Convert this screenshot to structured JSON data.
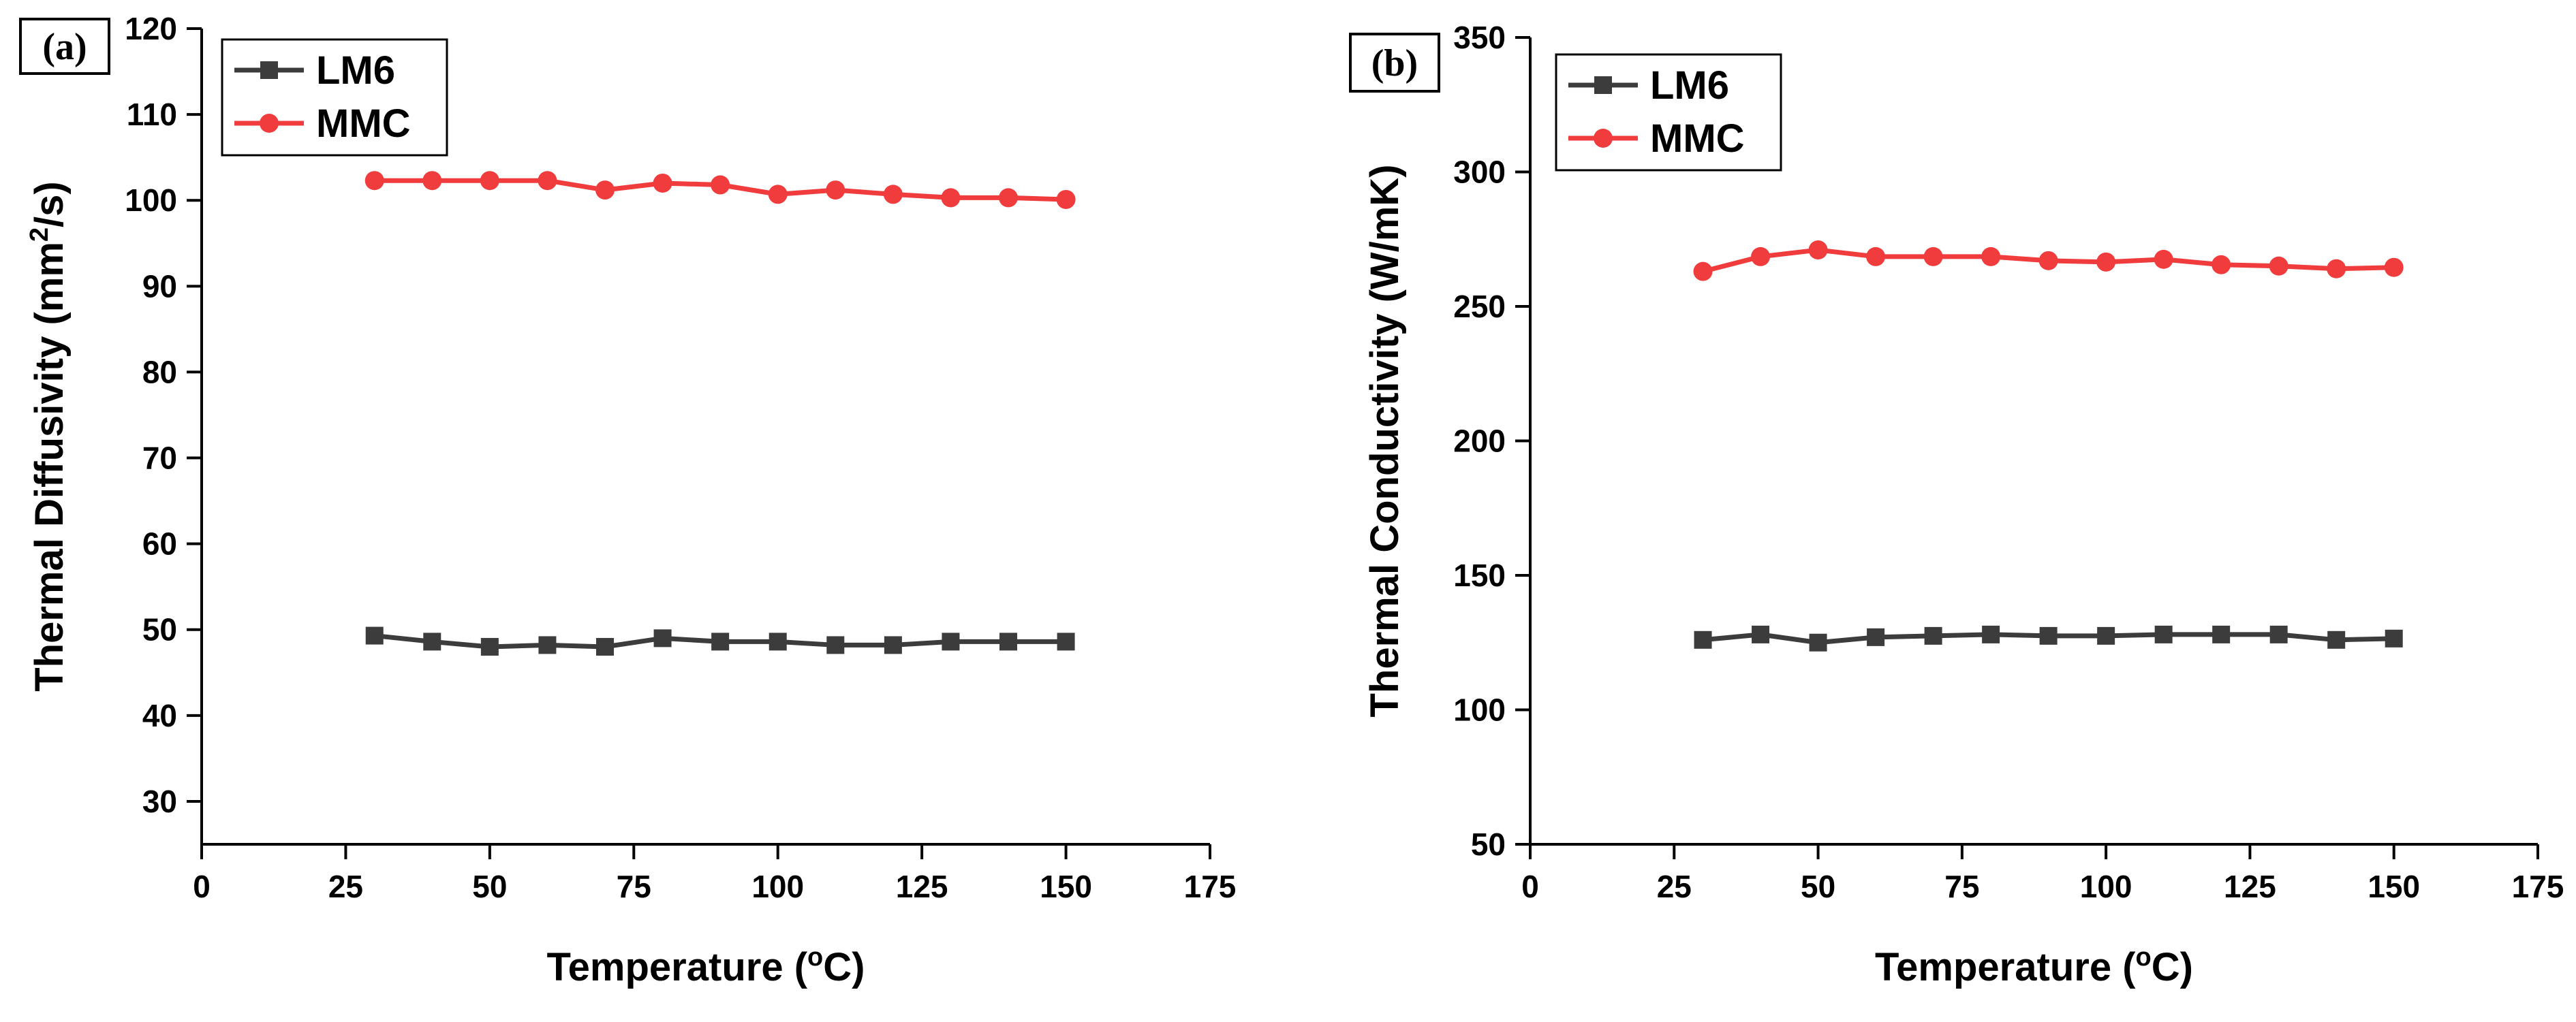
{
  "chart_data": [
    {
      "type": "line",
      "panel_label": "(a)",
      "title": "",
      "xlabel": "Temperature (",
      "xlabel_sup": "o",
      "xlabel_suffix": "C)",
      "ylabel": "Thermal Diffusivity (mm",
      "ylabel_sup": "2",
      "ylabel_suffix": "/s)",
      "xlim": [
        0,
        175
      ],
      "ylim": [
        25,
        120
      ],
      "xticks": [
        0,
        25,
        50,
        75,
        100,
        125,
        150,
        175
      ],
      "yticks": [
        30,
        40,
        50,
        60,
        70,
        80,
        90,
        100,
        110,
        120
      ],
      "x": [
        30,
        40,
        50,
        60,
        70,
        80,
        90,
        100,
        110,
        120,
        130,
        140,
        150
      ],
      "legend_position": "top-left",
      "series": [
        {
          "name": "LM6",
          "color": "#3c3c3c",
          "marker": "square",
          "values": [
            49.3,
            48.6,
            48.0,
            48.2,
            48.0,
            49.0,
            48.6,
            48.6,
            48.2,
            48.2,
            48.6,
            48.6,
            48.6
          ]
        },
        {
          "name": "MMC",
          "color": "#f03c3c",
          "marker": "circle",
          "values": [
            102.3,
            102.3,
            102.3,
            102.3,
            101.2,
            102.0,
            101.8,
            100.7,
            101.2,
            100.7,
            100.3,
            100.3,
            100.1
          ]
        }
      ]
    },
    {
      "type": "line",
      "panel_label": "(b)",
      "title": "",
      "xlabel": "Temperature (",
      "xlabel_sup": "o",
      "xlabel_suffix": "C)",
      "ylabel": "Thermal Conductivity (W/mK)",
      "ylabel_sup": "",
      "ylabel_suffix": "",
      "xlim": [
        0,
        175
      ],
      "ylim": [
        50,
        350
      ],
      "xticks": [
        0,
        25,
        50,
        75,
        100,
        125,
        150,
        175
      ],
      "yticks": [
        50,
        100,
        150,
        200,
        250,
        300,
        350
      ],
      "x": [
        30,
        40,
        50,
        60,
        70,
        80,
        90,
        100,
        110,
        120,
        130,
        140,
        150
      ],
      "legend_position": "top-left",
      "series": [
        {
          "name": "LM6",
          "color": "#3c3c3c",
          "marker": "square",
          "values": [
            126,
            128,
            125,
            127,
            127.5,
            128,
            127.5,
            127.5,
            128,
            128,
            128,
            126,
            126.5
          ]
        },
        {
          "name": "MMC",
          "color": "#f03c3c",
          "marker": "circle",
          "values": [
            263,
            268.5,
            271,
            268.5,
            268.5,
            268.5,
            267,
            266.5,
            267.5,
            265.5,
            265,
            264,
            264.5
          ]
        }
      ]
    }
  ]
}
